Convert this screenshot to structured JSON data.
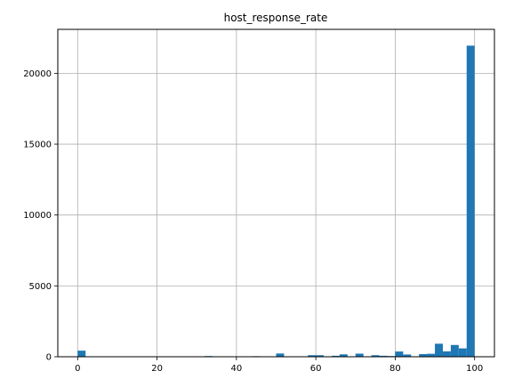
{
  "chart_data": {
    "type": "bar",
    "title": "host_response_rate",
    "xlabel": "",
    "ylabel": "",
    "xlim": [
      -5,
      105
    ],
    "ylim": [
      0,
      23100
    ],
    "grid": true,
    "bar_color": "#1f77b4",
    "grid_color": "#b0b0b0",
    "x_ticks": [
      0,
      20,
      40,
      60,
      80,
      100
    ],
    "y_ticks": [
      0,
      5000,
      10000,
      15000,
      20000
    ],
    "bin_width": 2,
    "bins": [
      {
        "x": 0,
        "value": 430
      },
      {
        "x": 32,
        "value": 50
      },
      {
        "x": 44,
        "value": 40
      },
      {
        "x": 50,
        "value": 230
      },
      {
        "x": 58,
        "value": 110
      },
      {
        "x": 60,
        "value": 110
      },
      {
        "x": 64,
        "value": 70
      },
      {
        "x": 66,
        "value": 170
      },
      {
        "x": 70,
        "value": 220
      },
      {
        "x": 74,
        "value": 110
      },
      {
        "x": 76,
        "value": 70
      },
      {
        "x": 78,
        "value": 50
      },
      {
        "x": 80,
        "value": 370
      },
      {
        "x": 82,
        "value": 160
      },
      {
        "x": 86,
        "value": 190
      },
      {
        "x": 88,
        "value": 210
      },
      {
        "x": 90,
        "value": 920
      },
      {
        "x": 92,
        "value": 380
      },
      {
        "x": 94,
        "value": 830
      },
      {
        "x": 96,
        "value": 590
      },
      {
        "x": 98,
        "value": 21950
      }
    ]
  }
}
